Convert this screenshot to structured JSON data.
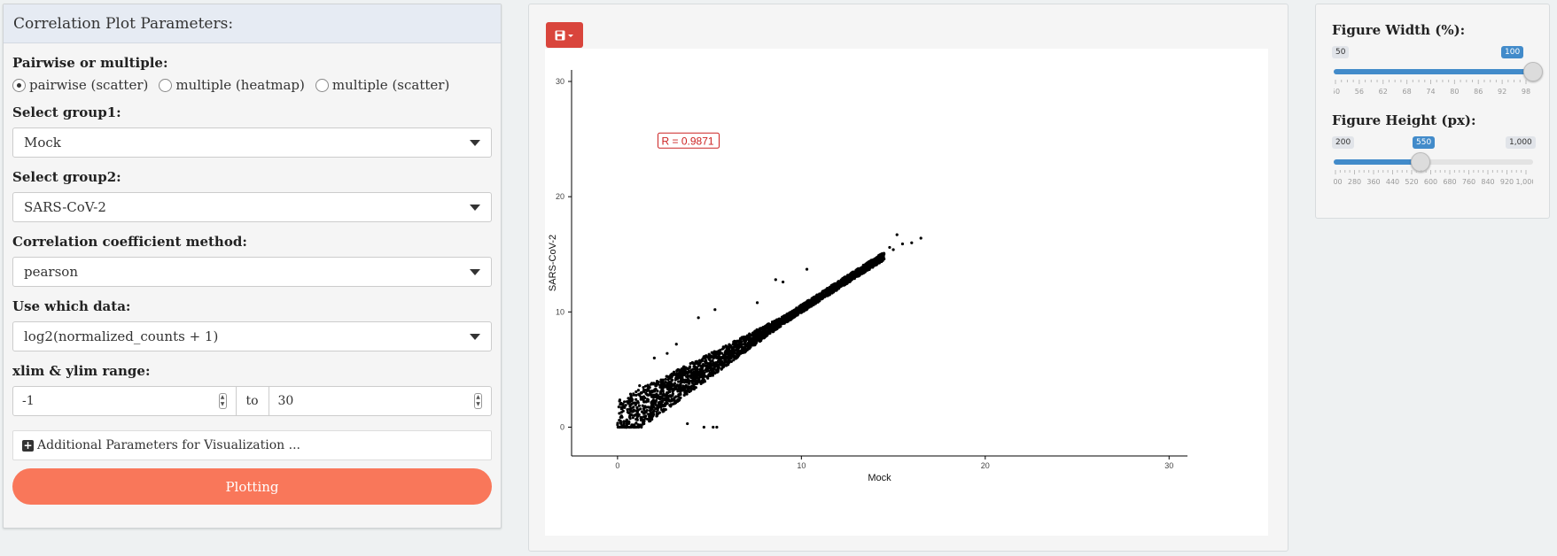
{
  "left_panel": {
    "title": "Correlation Plot Parameters:",
    "mode": {
      "label": "Pairwise or multiple:",
      "options": [
        "pairwise (scatter)",
        "multiple (heatmap)",
        "multiple (scatter)"
      ],
      "selected_index": 0
    },
    "group1": {
      "label": "Select group1:",
      "value": "Mock"
    },
    "group2": {
      "label": "Select group2:",
      "value": "SARS-CoV-2"
    },
    "method": {
      "label": "Correlation coefficient method:",
      "value": "pearson"
    },
    "data_source": {
      "label": "Use which data:",
      "value": "log2(normalized_counts + 1)"
    },
    "range": {
      "label": "xlim & ylim range:",
      "min": "-1",
      "to": "to",
      "max": "30"
    },
    "additional_label": "Additional Parameters for Visualization ...",
    "plot_button": "Plotting"
  },
  "save_icon": "save-icon",
  "chart_data": {
    "type": "scatter",
    "xlabel": "Mock",
    "ylabel": "SARS-CoV-2",
    "xlim": [
      -2.5,
      31
    ],
    "ylim": [
      -2.5,
      31
    ],
    "x_ticks": [
      0,
      10,
      20,
      30
    ],
    "y_ticks": [
      0,
      10,
      20,
      30
    ],
    "grid": false,
    "annotation": "R = 0.9871",
    "point_color": "#000000",
    "annotation_color": "#cc2222",
    "sample_points": [
      [
        0.2,
        0.3
      ],
      [
        0.5,
        0.6
      ],
      [
        1.0,
        1.1
      ],
      [
        1.5,
        1.8
      ],
      [
        2.0,
        2.2
      ],
      [
        2.5,
        2.9
      ],
      [
        3.0,
        3.1
      ],
      [
        3.5,
        3.9
      ],
      [
        4.0,
        4.3
      ],
      [
        4.5,
        4.9
      ],
      [
        5.0,
        5.2
      ],
      [
        5.5,
        5.9
      ],
      [
        6.0,
        6.4
      ],
      [
        6.5,
        6.8
      ],
      [
        7.0,
        7.2
      ],
      [
        7.5,
        7.9
      ],
      [
        8.0,
        8.3
      ],
      [
        8.5,
        8.8
      ],
      [
        9.0,
        9.2
      ],
      [
        9.5,
        9.8
      ],
      [
        10.0,
        10.1
      ],
      [
        10.5,
        10.6
      ],
      [
        11.0,
        11.1
      ],
      [
        11.5,
        11.7
      ],
      [
        12.0,
        12.1
      ],
      [
        12.5,
        12.6
      ],
      [
        13.0,
        13.1
      ],
      [
        13.5,
        13.6
      ],
      [
        14.0,
        14.1
      ],
      [
        14.5,
        14.6
      ],
      [
        15.0,
        15.4
      ],
      [
        15.5,
        15.9
      ],
      [
        16.0,
        16.0
      ],
      [
        16.5,
        16.4
      ],
      [
        15.2,
        16.7
      ],
      [
        14.8,
        15.6
      ],
      [
        3.2,
        7.2
      ],
      [
        4.4,
        9.5
      ],
      [
        5.3,
        10.2
      ],
      [
        7.6,
        10.8
      ],
      [
        8.6,
        12.8
      ],
      [
        9.0,
        12.6
      ],
      [
        10.3,
        13.7
      ],
      [
        2.7,
        6.4
      ],
      [
        2.0,
        6.0
      ],
      [
        4.7,
        0.0
      ],
      [
        5.2,
        0.0
      ],
      [
        5.4,
        0.0
      ],
      [
        3.8,
        0.3
      ],
      [
        1.2,
        3.6
      ],
      [
        0.3,
        2.0
      ],
      [
        0.1,
        1.2
      ]
    ]
  },
  "right_panel": {
    "width": {
      "label": "Figure Width (%):",
      "min": "50",
      "max": "100",
      "value": "100",
      "value_fraction": 1.0,
      "ticks": [
        "50",
        "56",
        "62",
        "68",
        "74",
        "80",
        "86",
        "92",
        "98"
      ]
    },
    "height": {
      "label": "Figure Height (px):",
      "min": "200",
      "max": "1,000",
      "value": "550",
      "value_fraction": 0.4375,
      "ticks": [
        "200",
        "280",
        "360",
        "440",
        "520",
        "600",
        "680",
        "760",
        "840",
        "920",
        "1,000"
      ]
    }
  }
}
